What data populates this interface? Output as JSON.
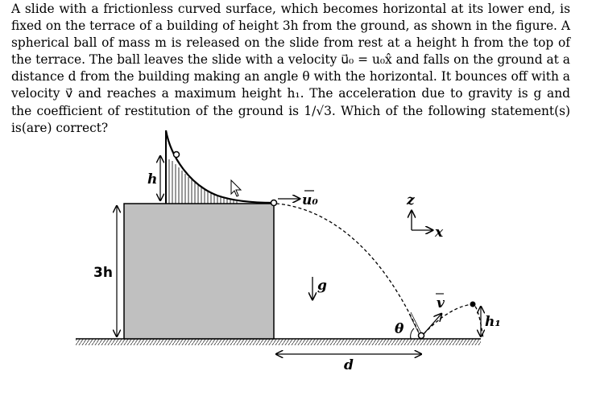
{
  "question": {
    "paragraph": "A slide with a frictionless curved surface, which becomes horizontal at its lower end, is fixed on the terrace of a building of height 3h from the ground, as shown in the figure. A spherical ball of mass m is released on the slide from rest at a height h from the top of the terrace. The ball leaves the slide with a velocity u⃗₀ = u₀x̂ and falls on the ground at a distance d from the building making an angle θ with the horizontal. It bounces off with a velocity v⃗ and reaches a maximum height h₁. The acceleration due to gravity is g and the coefficient of restitution of the ground is 1/√3. Which of the following statement(s) is(are) correct?"
  },
  "figure": {
    "label_h": "h",
    "label_3h": "3h",
    "label_u0": "u₀",
    "label_z": "z",
    "label_x": "x",
    "label_g": "g",
    "label_theta": "θ",
    "label_v": "v",
    "label_h1": "h₁",
    "label_d": "d"
  }
}
